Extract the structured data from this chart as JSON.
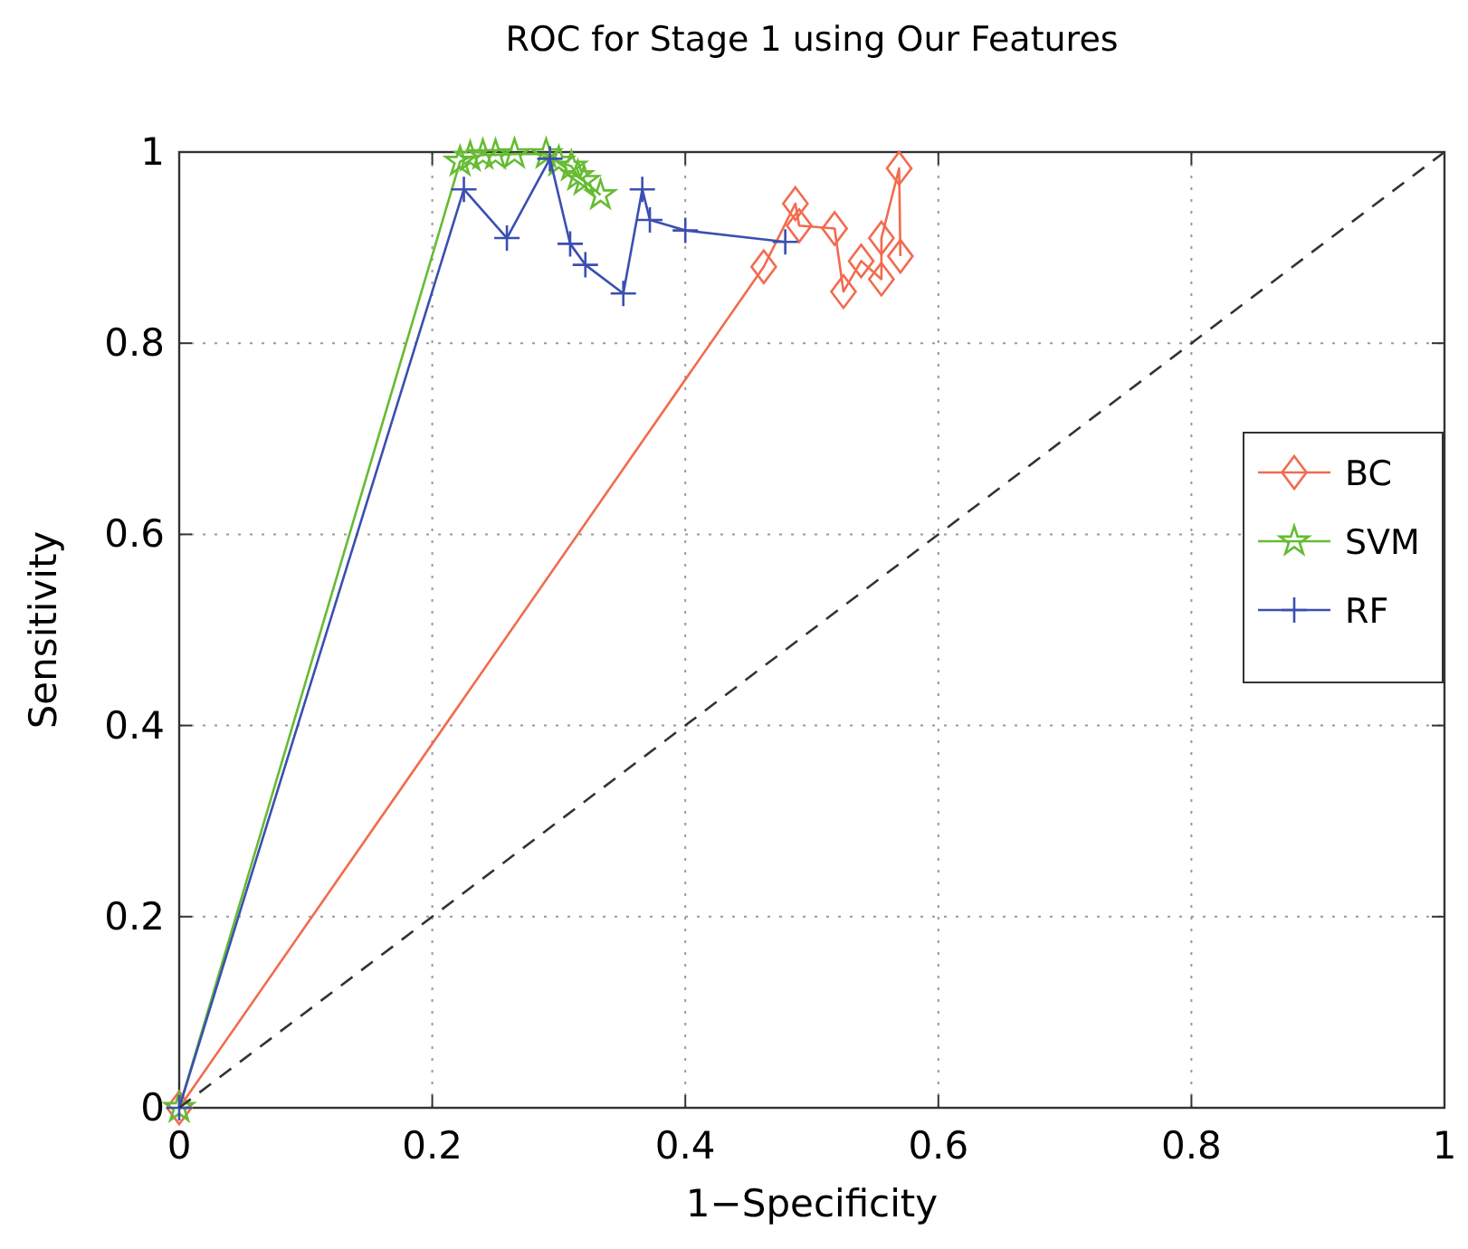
{
  "chart_data": {
    "type": "line",
    "title": "ROC for Stage 1 using Our Features",
    "xlabel": "1−Specificity",
    "ylabel": "Sensitivity",
    "xlim": [
      0,
      1
    ],
    "ylim": [
      0,
      1
    ],
    "xticks": [
      0,
      0.2,
      0.4,
      0.6,
      0.8,
      1
    ],
    "yticks": [
      0,
      0.2,
      0.4,
      0.6,
      0.8,
      1
    ],
    "grid": true,
    "legend": "right",
    "series": [
      {
        "name": "BC",
        "color": "#f26b4f",
        "marker": "diamond",
        "x": [
          0,
          0.462,
          0.487,
          0.49,
          0.518,
          0.525,
          0.539,
          0.555,
          0.555,
          0.569,
          0.57
        ],
        "values": [
          0,
          0.88,
          0.946,
          0.923,
          0.92,
          0.854,
          0.886,
          0.867,
          0.91,
          0.983,
          0.891
        ]
      },
      {
        "name": "SVM",
        "color": "#66bb33",
        "marker": "star",
        "x": [
          0,
          0.222,
          0.23,
          0.24,
          0.25,
          0.265,
          0.29,
          0.3,
          0.31,
          0.315,
          0.32,
          0.333
        ],
        "values": [
          0,
          0.99,
          0.995,
          0.997,
          0.997,
          0.998,
          0.998,
          0.99,
          0.985,
          0.975,
          0.97,
          0.955
        ]
      },
      {
        "name": "RF",
        "color": "#3b4fb0",
        "marker": "cross",
        "x": [
          0,
          0.225,
          0.259,
          0.293,
          0.309,
          0.321,
          0.351,
          0.366,
          0.372,
          0.4,
          0.479
        ],
        "values": [
          0,
          0.961,
          0.91,
          0.993,
          0.904,
          0.882,
          0.852,
          0.961,
          0.929,
          0.918,
          0.906
        ]
      },
      {
        "color": "#333333",
        "marker": "none",
        "line_style": "dashed",
        "x": [
          0,
          1
        ],
        "values": [
          0,
          1
        ]
      }
    ]
  }
}
